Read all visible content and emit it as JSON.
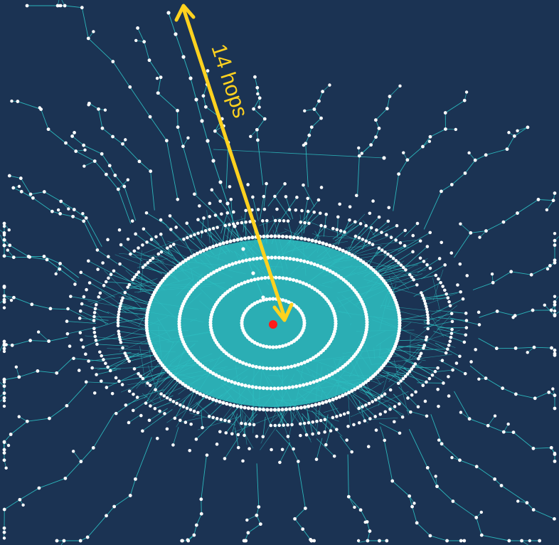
{
  "colors": {
    "background": "#1b3353",
    "edge": "#2ec4c6",
    "node": "#ffffff",
    "root_node": "#ff1a1a",
    "arrow": "#ffd21f"
  },
  "annotation": {
    "label": "14 hops",
    "hop_count": 14
  },
  "graph": {
    "depth_rings": 14,
    "root_icon": "red-dot"
  }
}
